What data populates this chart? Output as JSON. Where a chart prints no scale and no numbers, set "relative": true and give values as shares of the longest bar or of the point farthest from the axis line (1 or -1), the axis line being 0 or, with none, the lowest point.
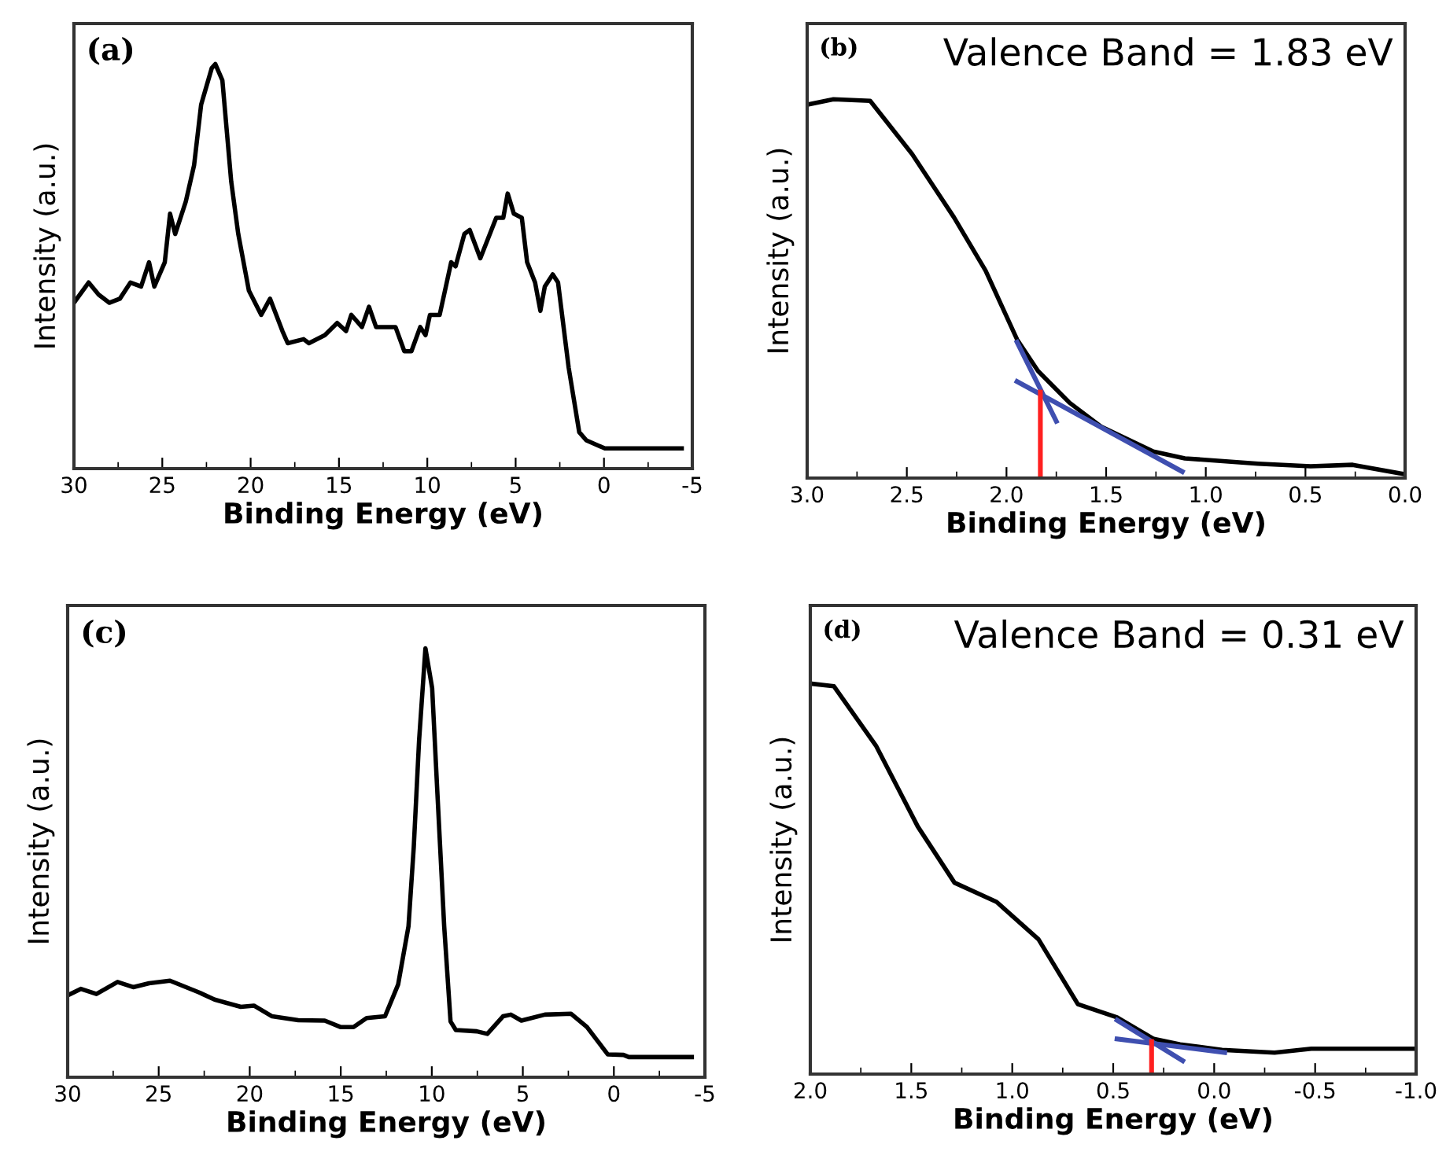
{
  "chart_data": [
    {
      "type": "line",
      "relative": true,
      "tick_labels": "x",
      "xlabel": "Binding Energy (eV)",
      "ylabel": "Intensity (a.u.)",
      "annotations": [
        "(a)"
      ],
      "xlim": [
        30,
        -5
      ],
      "xticks": [
        30,
        25,
        20,
        15,
        10,
        5,
        0,
        -5
      ],
      "series": [
        {
          "color": "#000000",
          "x": [
            30,
            29.17,
            28.6,
            28.0,
            27.4,
            26.8,
            26.2,
            25.75,
            25.45,
            24.86,
            24.56,
            24.27,
            23.67,
            23.2,
            22.8,
            22.2,
            22.0,
            21.6,
            21.1,
            20.7,
            20.1,
            19.4,
            18.9,
            18.2,
            17.9,
            17.0,
            16.7,
            15.8,
            15.1,
            14.6,
            14.3,
            13.7,
            13.3,
            12.9,
            11.8,
            11.3,
            10.9,
            10.4,
            10.1,
            9.85,
            9.3,
            8.65,
            8.4,
            7.9,
            7.6,
            7.0,
            6.1,
            5.7,
            5.45,
            5.1,
            4.65,
            4.35,
            3.9,
            3.6,
            3.35,
            2.9,
            2.6,
            2.0,
            1.4,
            1.0,
            -0.05,
            -2.0,
            -4.4
          ],
          "values": [
            0.41,
            0.46,
            0.43,
            0.41,
            0.42,
            0.46,
            0.45,
            0.51,
            0.45,
            0.51,
            0.63,
            0.58,
            0.66,
            0.75,
            0.9,
            0.99,
            1.0,
            0.96,
            0.71,
            0.58,
            0.44,
            0.38,
            0.42,
            0.34,
            0.31,
            0.32,
            0.31,
            0.33,
            0.36,
            0.34,
            0.38,
            0.35,
            0.4,
            0.35,
            0.35,
            0.29,
            0.29,
            0.35,
            0.33,
            0.38,
            0.38,
            0.51,
            0.5,
            0.58,
            0.59,
            0.52,
            0.62,
            0.62,
            0.68,
            0.63,
            0.62,
            0.51,
            0.46,
            0.39,
            0.45,
            0.48,
            0.46,
            0.25,
            0.09,
            0.07,
            0.05,
            0.05,
            0.05
          ]
        }
      ]
    },
    {
      "type": "line",
      "relative": true,
      "tick_labels": "x",
      "xlabel": "Binding Energy (eV)",
      "ylabel": "Intensity (a.u.)",
      "annotations": [
        "(b)",
        "Valence Band = 1.83 eV"
      ],
      "xlim": [
        3.0,
        0.0
      ],
      "xticks": [
        {
          "value": 3,
          "label": "3.0"
        },
        2.5,
        {
          "value": 2,
          "label": "2.0"
        },
        1.5,
        {
          "value": 1,
          "label": "1.0"
        },
        0.5,
        {
          "value": 0,
          "label": "0.0"
        }
      ],
      "series": [
        {
          "color": "#000000",
          "x": [
            3.0,
            2.868,
            2.684,
            2.474,
            2.263,
            2.105,
            1.947,
            1.842,
            1.684,
            1.526,
            1.263,
            1.105,
            0.737,
            0.474,
            0.263,
            0.0
          ],
          "values": [
            0.986,
            1.0,
            0.996,
            0.856,
            0.688,
            0.548,
            0.366,
            0.283,
            0.199,
            0.136,
            0.07,
            0.052,
            0.038,
            0.031,
            0.035,
            0.01
          ]
        },
        {
          "color": "#3f4fb0",
          "x": [
            1.947,
            1.75
          ],
          "values": [
            0.359,
            0.15
          ]
        },
        {
          "color": "#3f4fb0",
          "x": [
            1.947,
            1.118
          ],
          "values": [
            0.255,
            0.017
          ]
        },
        {
          "color": "#ff2020",
          "x": [
            1.83,
            1.83
          ],
          "values": [
            0,
            0.227
          ]
        }
      ]
    },
    {
      "type": "line",
      "relative": true,
      "tick_labels": "x",
      "xlabel": "Binding Energy (eV)",
      "ylabel": "Intensity (a.u.)",
      "annotations": [
        "(c)"
      ],
      "xlim": [
        30,
        -5
      ],
      "xticks": [
        30,
        25,
        20,
        15,
        10,
        5,
        0,
        -5
      ],
      "series": [
        {
          "color": "#000000",
          "x": [
            30,
            29.28,
            28.42,
            27.26,
            26.4,
            25.53,
            24.38,
            22.8,
            21.93,
            20.49,
            19.77,
            18.77,
            17.33,
            15.88,
            15.02,
            14.3,
            13.58,
            12.57,
            11.85,
            11.28,
            10.99,
            10.7,
            10.35,
            9.98,
            9.69,
            9.32,
            8.97,
            8.68,
            7.53,
            6.95,
            6.09,
            5.66,
            5.08,
            3.79,
            2.35,
            1.48,
            0.33,
            -0.53,
            -0.82,
            -4.28
          ],
          "values": [
            0.191,
            0.206,
            0.194,
            0.222,
            0.21,
            0.219,
            0.225,
            0.198,
            0.181,
            0.164,
            0.167,
            0.142,
            0.133,
            0.132,
            0.117,
            0.117,
            0.138,
            0.142,
            0.216,
            0.352,
            0.537,
            0.784,
            1.0,
            0.907,
            0.66,
            0.352,
            0.13,
            0.11,
            0.107,
            0.101,
            0.142,
            0.146,
            0.132,
            0.146,
            0.148,
            0.117,
            0.053,
            0.052,
            0.047,
            0.047
          ]
        }
      ]
    },
    {
      "type": "line",
      "relative": true,
      "tick_labels": "x",
      "xlabel": "Binding Energy (eV)",
      "ylabel": "Intensity (a.u.)",
      "annotations": [
        "(d)",
        "Valence Band = 0.31 eV"
      ],
      "xlim": [
        2.0,
        -1.0
      ],
      "xticks": [
        {
          "value": 2,
          "label": "2.0"
        },
        1.5,
        {
          "value": 1,
          "label": "1.0"
        },
        0.5,
        {
          "value": 0,
          "label": "0.0"
        },
        -0.5,
        {
          "value": -1,
          "label": "-1.0"
        }
      ],
      "series": [
        {
          "color": "#000000",
          "x": [
            2.0,
            1.883,
            1.675,
            1.468,
            1.286,
            1.078,
            0.87,
            0.675,
            0.481,
            0.299,
            0.169,
            -0.039,
            -0.299,
            -0.481,
            -1.0
          ],
          "values": [
            1.0,
            0.993,
            0.841,
            0.634,
            0.49,
            0.441,
            0.345,
            0.179,
            0.145,
            0.09,
            0.076,
            0.062,
            0.055,
            0.065,
            0.065
          ]
        },
        {
          "color": "#3f4fb0",
          "x": [
            0.481,
            0.156
          ],
          "values": [
            0.138,
            0.034
          ]
        },
        {
          "color": "#3f4fb0",
          "x": [
            0.481,
            -0.052
          ],
          "values": [
            0.09,
            0.055
          ]
        },
        {
          "color": "#ff2020",
          "x": [
            0.31,
            0.31
          ],
          "values": [
            0,
            0.083
          ]
        }
      ]
    }
  ]
}
